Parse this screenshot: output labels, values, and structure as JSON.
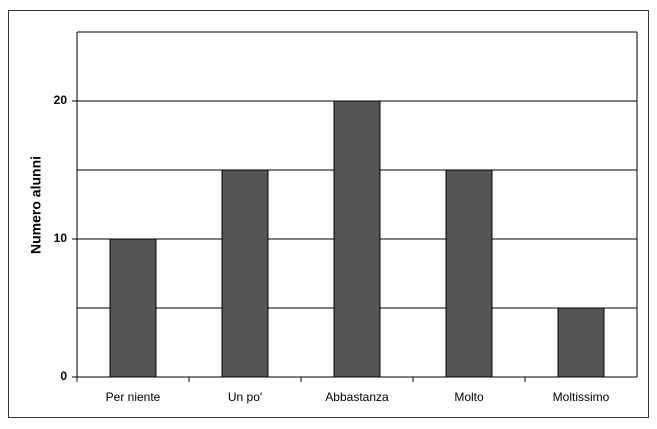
{
  "chart_data": {
    "type": "bar",
    "ylabel": "Numero alunni",
    "categories": [
      "Per niente",
      "Un po'",
      "Abbastanza",
      "Molto",
      "Moltissimo"
    ],
    "values": [
      10,
      15,
      20,
      15,
      5
    ],
    "color": "#555555",
    "ylim": [
      0,
      25
    ],
    "yticks": [
      0,
      10,
      20
    ],
    "minor_yticks": [
      5,
      15
    ],
    "grid": true
  }
}
